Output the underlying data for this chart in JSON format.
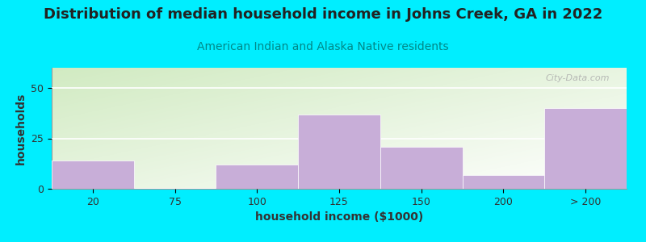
{
  "title": "Distribution of median household income in Johns Creek, GA in 2022",
  "subtitle": "American Indian and Alaska Native residents",
  "xlabel": "household income ($1000)",
  "ylabel": "households",
  "categories": [
    "20",
    "75",
    "100",
    "125",
    "150",
    "200",
    "> 200"
  ],
  "values": [
    14,
    0,
    12,
    37,
    21,
    7,
    40
  ],
  "bar_color": "#c8aed8",
  "bar_edgecolor": "#c8aed8",
  "background_color": "#00eeff",
  "grad_color_topleft": [
    0.82,
    0.92,
    0.76
  ],
  "grad_color_botright": [
    1.0,
    1.0,
    1.0
  ],
  "yticks": [
    0,
    25,
    50
  ],
  "ylim": [
    0,
    60
  ],
  "title_fontsize": 13,
  "subtitle_fontsize": 10,
  "axis_label_fontsize": 10,
  "tick_fontsize": 9,
  "watermark": "City-Data.com"
}
